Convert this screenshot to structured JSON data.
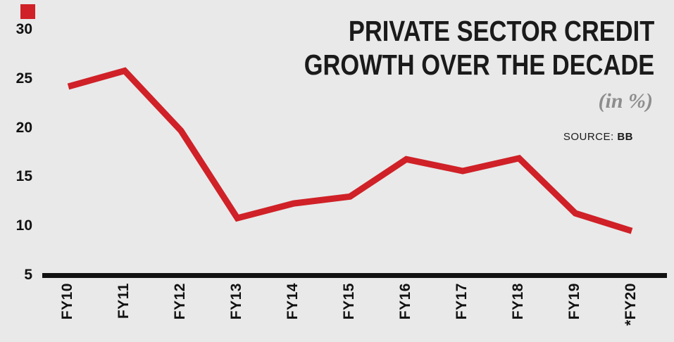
{
  "header": {
    "title_line1": "PRIVATE SECTOR CREDIT",
    "title_line2": "GROWTH OVER THE DECADE",
    "unit": "(in %)",
    "source_label": "SOURCE:",
    "source_value": "BB"
  },
  "chart_data": {
    "type": "line",
    "title": "Private sector credit growth over the decade",
    "subtitle": "(in %)",
    "source": "BB",
    "categories": [
      "FY10",
      "FY11",
      "FY12",
      "FY13",
      "FY14",
      "FY15",
      "FY16",
      "FY17",
      "FY18",
      "FY19",
      "*FY20"
    ],
    "values": [
      24.2,
      25.8,
      19.7,
      10.8,
      12.3,
      13.0,
      16.8,
      15.6,
      16.9,
      11.3,
      9.5
    ],
    "ylim": [
      5,
      30
    ],
    "yticks": [
      5,
      10,
      15,
      20,
      25,
      30
    ],
    "grid": false,
    "legend_position": "none",
    "line_color": "#cf2127",
    "axis_color": "#111111",
    "background_color": "#e9e9e9"
  }
}
